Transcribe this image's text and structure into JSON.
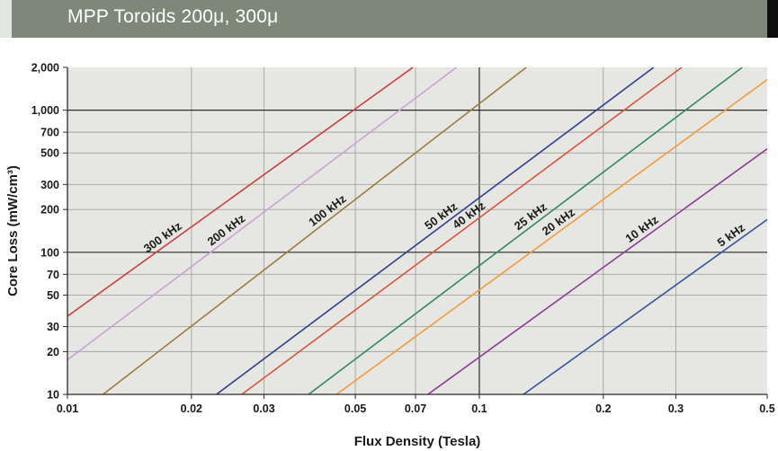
{
  "header": {
    "title": "MPP Toroids 200μ, 300μ",
    "background": "#7d8878"
  },
  "chart_data": {
    "type": "line",
    "scale": "log-log",
    "title": "MPP Toroids 200μ, 300μ",
    "xlabel": "Flux Density (Tesla)",
    "ylabel": "Core Loss (mW/cm³)",
    "xlim": [
      0.01,
      0.5
    ],
    "ylim": [
      10,
      2000
    ],
    "grid": true,
    "plot_background": "#e6e6e3",
    "x_ticks": [
      {
        "value": 0.01,
        "label": "0.01"
      },
      {
        "value": 0.02,
        "label": "0.02"
      },
      {
        "value": 0.03,
        "label": "0.03"
      },
      {
        "value": 0.05,
        "label": "0.05"
      },
      {
        "value": 0.07,
        "label": "0.07"
      },
      {
        "value": 0.1,
        "label": "0.1"
      },
      {
        "value": 0.2,
        "label": "0.2"
      },
      {
        "value": 0.3,
        "label": "0.3"
      },
      {
        "value": 0.5,
        "label": "0.5"
      }
    ],
    "y_ticks": [
      {
        "value": 10,
        "label": "10"
      },
      {
        "value": 20,
        "label": "20"
      },
      {
        "value": 30,
        "label": "30"
      },
      {
        "value": 50,
        "label": "50"
      },
      {
        "value": 70,
        "label": "70"
      },
      {
        "value": 100,
        "label": "100"
      },
      {
        "value": 200,
        "label": "200"
      },
      {
        "value": 300,
        "label": "300"
      },
      {
        "value": 500,
        "label": "500"
      },
      {
        "value": 700,
        "label": "700"
      },
      {
        "value": 1000,
        "label": "1,000"
      },
      {
        "value": 2000,
        "label": "2,000"
      }
    ],
    "series": [
      {
        "name": "300 kHz",
        "color": "#c8413b",
        "points": [
          [
            0.01,
            35.5
          ],
          [
            0.069,
            2000
          ]
        ],
        "label_at": 0.0175
      },
      {
        "name": "200 kHz",
        "color": "#c9a3d6",
        "points": [
          [
            0.01,
            17.5
          ],
          [
            0.088,
            2000
          ]
        ],
        "label_at": 0.025
      },
      {
        "name": "100 kHz",
        "color": "#9b7c3c",
        "points": [
          [
            0.0122,
            10
          ],
          [
            0.13,
            2000
          ]
        ],
        "label_at": 0.044
      },
      {
        "name": "50 kHz",
        "color": "#323c96",
        "points": [
          [
            0.023,
            10
          ],
          [
            0.265,
            2000
          ]
        ],
        "label_at": 0.083
      },
      {
        "name": "40 kHz",
        "color": "#d9553a",
        "points": [
          [
            0.0265,
            10
          ],
          [
            0.31,
            2000
          ]
        ],
        "label_at": 0.097
      },
      {
        "name": "25 kHz",
        "color": "#2f8a5c",
        "points": [
          [
            0.0385,
            10
          ],
          [
            0.435,
            2000
          ]
        ],
        "label_at": 0.137
      },
      {
        "name": "20 kHz",
        "color": "#f29a3a",
        "points": [
          [
            0.045,
            10
          ],
          [
            0.5,
            1640
          ]
        ],
        "label_at": 0.16
      },
      {
        "name": "10 kHz",
        "color": "#8c3a96",
        "points": [
          [
            0.075,
            10
          ],
          [
            0.5,
            535
          ]
        ],
        "label_at": 0.255
      },
      {
        "name": "5 kHz",
        "color": "#3455a0",
        "points": [
          [
            0.128,
            10
          ],
          [
            0.5,
            170
          ]
        ],
        "label_at": 0.42
      }
    ]
  }
}
